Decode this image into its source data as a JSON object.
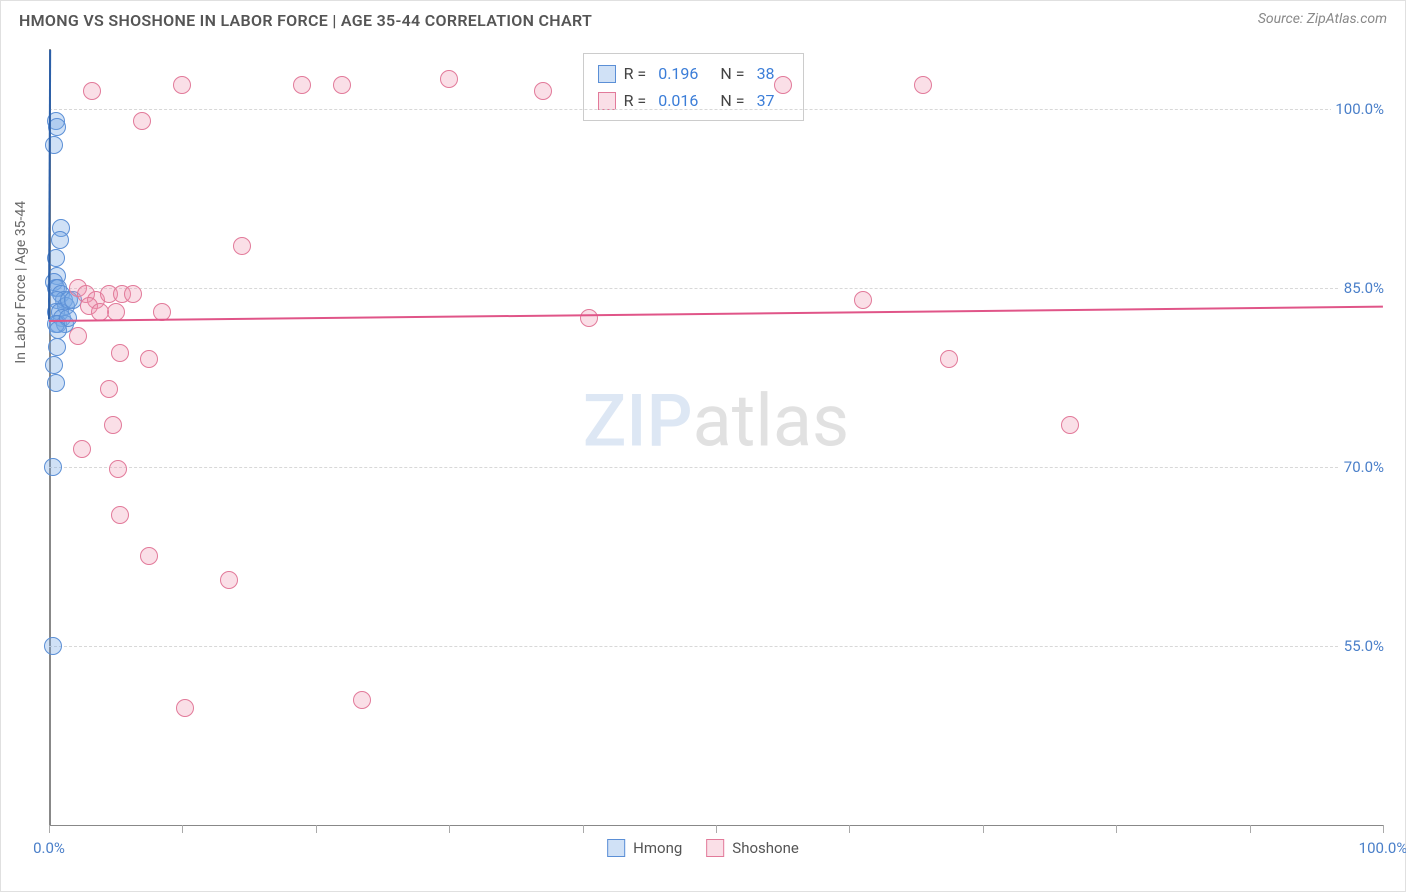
{
  "title": "HMONG VS SHOSHONE IN LABOR FORCE | AGE 35-44 CORRELATION CHART",
  "source": "Source: ZipAtlas.com",
  "ylabel": "In Labor Force | Age 35-44",
  "watermark_a": "ZIP",
  "watermark_b": "atlas",
  "chart": {
    "type": "scatter",
    "xlim": [
      0,
      100
    ],
    "ylim": [
      40,
      105
    ],
    "y_ticks": [
      55,
      70,
      85,
      100
    ],
    "y_tick_labels": [
      "55.0%",
      "70.0%",
      "85.0%",
      "100.0%"
    ],
    "x_ticks": [
      0,
      10,
      20,
      30,
      40,
      50,
      60,
      70,
      80,
      90,
      100
    ],
    "x_tick_labels": {
      "0": "0.0%",
      "100": "100.0%"
    },
    "background_color": "#ffffff",
    "grid_color": "#d8d8d8",
    "axis_color": "#888888",
    "marker_radius": 9,
    "marker_stroke": 1.5,
    "series": [
      {
        "name": "Hmong",
        "color_fill": "rgba(120,170,230,0.35)",
        "color_stroke": "#5b8fd6",
        "r": 0.196,
        "n": 38,
        "trend": {
          "y_at_x0": 82.5,
          "slope": 260,
          "color": "#2b5fa8",
          "dash_color": "#5b8fd6"
        },
        "points": [
          [
            0.5,
            99
          ],
          [
            0.6,
            98.5
          ],
          [
            0.4,
            97
          ],
          [
            0.9,
            90
          ],
          [
            0.8,
            89
          ],
          [
            0.5,
            87.5
          ],
          [
            0.6,
            86
          ],
          [
            0.4,
            85.5
          ],
          [
            0.5,
            85
          ],
          [
            0.7,
            85
          ],
          [
            0.9,
            84.5
          ],
          [
            1.1,
            84
          ],
          [
            0.6,
            84
          ],
          [
            1.3,
            83.5
          ],
          [
            0.5,
            83
          ],
          [
            0.8,
            83
          ],
          [
            1.0,
            82.5
          ],
          [
            0.7,
            82
          ],
          [
            1.2,
            82
          ],
          [
            0.5,
            82
          ],
          [
            1.4,
            82.5
          ],
          [
            0.7,
            81.5
          ],
          [
            1.5,
            84
          ],
          [
            1.8,
            84
          ],
          [
            0.6,
            80
          ],
          [
            0.4,
            78.5
          ],
          [
            0.5,
            77
          ],
          [
            0.3,
            70
          ],
          [
            0.3,
            55
          ]
        ]
      },
      {
        "name": "Shoshone",
        "color_fill": "rgba(240,150,175,0.3)",
        "color_stroke": "#e27a9a",
        "r": 0.016,
        "n": 37,
        "trend": {
          "y_at_x0": 82.3,
          "slope": 0.012,
          "color": "#e05588"
        },
        "points": [
          [
            3.2,
            101.5
          ],
          [
            10,
            102
          ],
          [
            19,
            102
          ],
          [
            22,
            102
          ],
          [
            30,
            102.5
          ],
          [
            37,
            101.5
          ],
          [
            55,
            102
          ],
          [
            65.5,
            102
          ],
          [
            7,
            99
          ],
          [
            14.5,
            88.5
          ],
          [
            2.2,
            85
          ],
          [
            2.8,
            84.5
          ],
          [
            3.5,
            84
          ],
          [
            4.5,
            84.5
          ],
          [
            3.0,
            83.5
          ],
          [
            5.5,
            84.5
          ],
          [
            5.0,
            83
          ],
          [
            3.8,
            83
          ],
          [
            6.3,
            84.5
          ],
          [
            8.5,
            83
          ],
          [
            2.2,
            81
          ],
          [
            5.3,
            79.5
          ],
          [
            7.5,
            79
          ],
          [
            4.5,
            76.5
          ],
          [
            4.8,
            73.5
          ],
          [
            2.5,
            71.5
          ],
          [
            5.2,
            69.8
          ],
          [
            5.3,
            66
          ],
          [
            7.5,
            62.5
          ],
          [
            13.5,
            60.5
          ],
          [
            10.2,
            49.8
          ],
          [
            23.5,
            50.5
          ],
          [
            40.5,
            82.5
          ],
          [
            61,
            84
          ],
          [
            67.5,
            79
          ],
          [
            76.5,
            73.5
          ]
        ]
      }
    ]
  },
  "legend": {
    "r_label": "R =",
    "n_label": "N ="
  }
}
